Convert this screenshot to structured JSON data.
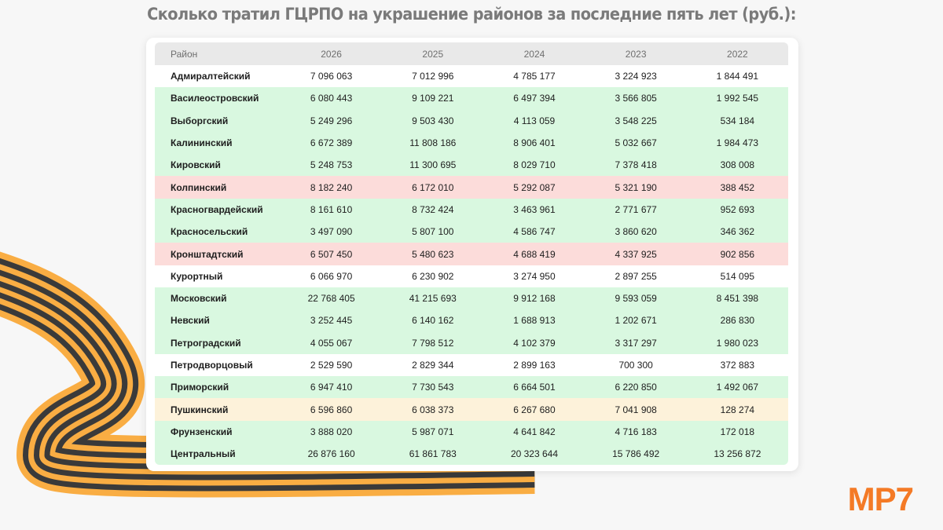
{
  "title": "Сколько тратил ГЦРПО на украшение районов за последние пять лет (руб.):",
  "logo": "МР7",
  "colors": {
    "white": "#ffffff",
    "green": "#d9f8e0",
    "red": "#fcdcda",
    "yellow": "#fdf2da",
    "accent": "#f47a26",
    "ribbon_orange": "#f9ad43",
    "ribbon_black": "#3a3a3a"
  },
  "table": {
    "headers": [
      "Район",
      "2026",
      "2025",
      "2024",
      "2023",
      "2022"
    ],
    "rows": [
      {
        "district": "Адмиралтейский",
        "color": "white",
        "values": [
          "7 096 063",
          "7 012 996",
          "4 785 177",
          "3 224 923",
          "1 844 491"
        ]
      },
      {
        "district": "Василеостровский",
        "color": "green",
        "values": [
          "6 080 443",
          "9 109 221",
          "6 497 394",
          "3 566 805",
          "1 992 545"
        ]
      },
      {
        "district": "Выборгский",
        "color": "green",
        "values": [
          "5 249 296",
          "9 503 430",
          "4 113 059",
          "3 548 225",
          "534 184"
        ]
      },
      {
        "district": "Калининский",
        "color": "green",
        "values": [
          "6 672 389",
          "11 808 186",
          "8 906 401",
          "5 032 667",
          "1 984 473"
        ]
      },
      {
        "district": "Кировский",
        "color": "green",
        "values": [
          "5 248 753",
          "11 300 695",
          "8 029 710",
          "7 378 418",
          "308 008"
        ]
      },
      {
        "district": "Колпинский",
        "color": "red",
        "values": [
          "8 182 240",
          "6 172 010",
          "5 292 087",
          "5 321 190",
          "388 452"
        ]
      },
      {
        "district": "Красногвардейский",
        "color": "green",
        "values": [
          "8 161 610",
          "8 732 424",
          "3 463 961",
          "2 771 677",
          "952 693"
        ]
      },
      {
        "district": "Красносельский",
        "color": "green",
        "values": [
          "3 497 090",
          "5 807 100",
          "4 586 747",
          "3 860 620",
          "346 362"
        ]
      },
      {
        "district": "Кронштадтский",
        "color": "red",
        "values": [
          "6 507 450",
          "5 480 623",
          "4 688 419",
          "4 337 925",
          "902 856"
        ]
      },
      {
        "district": "Курортный",
        "color": "white",
        "values": [
          "6 066 970",
          "6 230 902",
          "3 274 950",
          "2 897 255",
          "514 095"
        ]
      },
      {
        "district": "Московский",
        "color": "green",
        "values": [
          "22 768 405",
          "41 215 693",
          "9 912 168",
          "9 593 059",
          "8 451 398"
        ]
      },
      {
        "district": "Невский",
        "color": "green",
        "values": [
          "3 252 445",
          "6 140 162",
          "1 688 913",
          "1 202 671",
          "286 830"
        ]
      },
      {
        "district": "Петроградский",
        "color": "green",
        "values": [
          "4 055 067",
          "7 798 512",
          "4 102 379",
          "3 317 297",
          "1 980 023"
        ]
      },
      {
        "district": "Петродворцовый",
        "color": "white",
        "values": [
          "2 529 590",
          "2 829 344",
          "2 899 163",
          "700 300",
          "372 883"
        ]
      },
      {
        "district": "Приморский",
        "color": "green",
        "values": [
          "6 947 410",
          "7 730 543",
          "6 664 501",
          "6 220 850",
          "1 492 067"
        ]
      },
      {
        "district": "Пушкинский",
        "color": "yellow",
        "values": [
          "6 596 860",
          "6 038 373",
          "6 267 680",
          "7 041 908",
          "128 274"
        ]
      },
      {
        "district": "Фрунзенский",
        "color": "green",
        "values": [
          "3 888 020",
          "5 987 071",
          "4 641 842",
          "4 716 183",
          "172 018"
        ]
      },
      {
        "district": "Центральный",
        "color": "green",
        "values": [
          "26 876 160",
          "61 861 783",
          "20 323 644",
          "15 786 492",
          "13 256 872"
        ]
      }
    ]
  },
  "chart_data": {
    "type": "table",
    "title": "Сколько тратил ГЦРПО на украшение районов за последние пять лет (руб.):",
    "columns": [
      "Район",
      "2026",
      "2025",
      "2024",
      "2023",
      "2022"
    ],
    "categories": [
      "Адмиралтейский",
      "Василеостровский",
      "Выборгский",
      "Калининский",
      "Кировский",
      "Колпинский",
      "Красногвардейский",
      "Красносельский",
      "Кронштадтский",
      "Курортный",
      "Московский",
      "Невский",
      "Петроградский",
      "Петродворцовый",
      "Приморский",
      "Пушкинский",
      "Фрунзенский",
      "Центральный"
    ],
    "series": [
      {
        "name": "2026",
        "values": [
          7096063,
          6080443,
          5249296,
          6672389,
          5248753,
          8182240,
          8161610,
          3497090,
          6507450,
          6066970,
          22768405,
          3252445,
          4055067,
          2529590,
          6947410,
          6596860,
          3888020,
          26876160
        ]
      },
      {
        "name": "2025",
        "values": [
          7012996,
          9109221,
          9503430,
          11808186,
          11300695,
          6172010,
          8732424,
          5807100,
          5480623,
          6230902,
          41215693,
          6140162,
          7798512,
          2829344,
          7730543,
          6038373,
          5987071,
          61861783
        ]
      },
      {
        "name": "2024",
        "values": [
          4785177,
          6497394,
          4113059,
          8906401,
          8029710,
          5292087,
          3463961,
          4586747,
          4688419,
          3274950,
          9912168,
          1688913,
          4102379,
          2899163,
          6664501,
          6267680,
          4641842,
          20323644
        ]
      },
      {
        "name": "2023",
        "values": [
          3224923,
          3566805,
          3548225,
          5032667,
          7378418,
          5321190,
          2771677,
          3860620,
          4337925,
          2897255,
          9593059,
          1202671,
          3317297,
          700300,
          6220850,
          7041908,
          4716183,
          15786492
        ]
      },
      {
        "name": "2022",
        "values": [
          1844491,
          1992545,
          534184,
          1984473,
          308008,
          388452,
          952693,
          346362,
          902856,
          514095,
          8451398,
          286830,
          1980023,
          372883,
          1492067,
          128274,
          172018,
          13256872
        ]
      }
    ],
    "row_highlight": [
      "white",
      "green",
      "green",
      "green",
      "green",
      "red",
      "green",
      "green",
      "red",
      "white",
      "green",
      "green",
      "green",
      "white",
      "green",
      "yellow",
      "green",
      "green"
    ],
    "unit": "руб."
  }
}
